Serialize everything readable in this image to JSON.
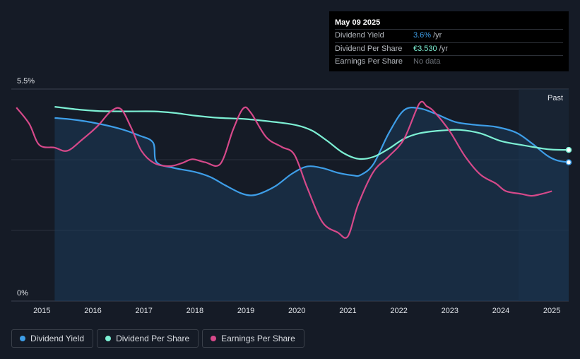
{
  "tooltip": {
    "date": "May 09 2025",
    "rows": [
      {
        "label": "Dividend Yield",
        "value": "3.6%",
        "unit": "/yr",
        "color": "#3e9ee8"
      },
      {
        "label": "Dividend Per Share",
        "value": "€3.530",
        "unit": "/yr",
        "color": "#7df0d4"
      },
      {
        "label": "Earnings Per Share",
        "value": "No data",
        "unit": ""
      }
    ]
  },
  "past_label": "Past",
  "legend": [
    {
      "label": "Dividend Yield",
      "color": "#3e9ee8"
    },
    {
      "label": "Dividend Per Share",
      "color": "#7df0d4"
    },
    {
      "label": "Earnings Per Share",
      "color": "#d6498a"
    }
  ],
  "chart_data": {
    "type": "line",
    "y_tick_labels": [
      "5.5%",
      "0%"
    ],
    "ylim": [
      0,
      5.5
    ],
    "xlim": [
      2014.4,
      2025.33
    ],
    "x_tick_labels": [
      "2015",
      "2016",
      "2017",
      "2018",
      "2019",
      "2020",
      "2021",
      "2022",
      "2023",
      "2024",
      "2025"
    ],
    "x_ticks": [
      2015,
      2016,
      2017,
      2018,
      2019,
      2020,
      2021,
      2022,
      2023,
      2024,
      2025
    ],
    "past_region_start": 2024.35,
    "series": [
      {
        "name": "Dividend Yield",
        "color": "#3e9ee8",
        "fill": true,
        "end_marker": true,
        "points": [
          [
            2015.25,
            4.75
          ],
          [
            2015.6,
            4.71
          ],
          [
            2016.0,
            4.63
          ],
          [
            2016.5,
            4.48
          ],
          [
            2016.9,
            4.3
          ],
          [
            2017.18,
            4.11
          ],
          [
            2017.25,
            3.6
          ],
          [
            2017.6,
            3.45
          ],
          [
            2018.0,
            3.35
          ],
          [
            2018.3,
            3.22
          ],
          [
            2018.6,
            3.0
          ],
          [
            2018.9,
            2.8
          ],
          [
            2019.1,
            2.74
          ],
          [
            2019.3,
            2.8
          ],
          [
            2019.6,
            3.0
          ],
          [
            2019.9,
            3.3
          ],
          [
            2020.2,
            3.49
          ],
          [
            2020.5,
            3.45
          ],
          [
            2020.8,
            3.33
          ],
          [
            2021.1,
            3.26
          ],
          [
            2021.25,
            3.27
          ],
          [
            2021.5,
            3.55
          ],
          [
            2021.8,
            4.35
          ],
          [
            2022.1,
            4.95
          ],
          [
            2022.4,
            5.0
          ],
          [
            2022.7,
            4.87
          ],
          [
            2023.1,
            4.65
          ],
          [
            2023.5,
            4.57
          ],
          [
            2023.9,
            4.52
          ],
          [
            2024.3,
            4.37
          ],
          [
            2024.6,
            4.1
          ],
          [
            2024.9,
            3.78
          ],
          [
            2025.1,
            3.65
          ],
          [
            2025.33,
            3.6
          ]
        ]
      },
      {
        "name": "Dividend Per Share",
        "color": "#7df0d4",
        "fill": false,
        "end_marker": true,
        "points": [
          [
            2015.25,
            5.04
          ],
          [
            2015.7,
            4.97
          ],
          [
            2016.1,
            4.93
          ],
          [
            2016.6,
            4.92
          ],
          [
            2017.2,
            4.92
          ],
          [
            2017.6,
            4.88
          ],
          [
            2018.0,
            4.81
          ],
          [
            2018.5,
            4.75
          ],
          [
            2019.0,
            4.72
          ],
          [
            2019.6,
            4.64
          ],
          [
            2020.0,
            4.56
          ],
          [
            2020.3,
            4.42
          ],
          [
            2020.6,
            4.15
          ],
          [
            2020.9,
            3.85
          ],
          [
            2021.2,
            3.69
          ],
          [
            2021.5,
            3.74
          ],
          [
            2021.8,
            3.95
          ],
          [
            2022.1,
            4.21
          ],
          [
            2022.4,
            4.35
          ],
          [
            2022.8,
            4.42
          ],
          [
            2023.2,
            4.44
          ],
          [
            2023.6,
            4.35
          ],
          [
            2024.0,
            4.15
          ],
          [
            2024.4,
            4.05
          ],
          [
            2024.8,
            3.96
          ],
          [
            2025.0,
            3.93
          ],
          [
            2025.33,
            3.92
          ]
        ]
      },
      {
        "name": "Earnings Per Share",
        "color": "#d6498a",
        "fill": false,
        "end_marker": false,
        "points": [
          [
            2014.5,
            5.02
          ],
          [
            2014.75,
            4.6
          ],
          [
            2014.95,
            4.05
          ],
          [
            2015.25,
            3.98
          ],
          [
            2015.5,
            3.9
          ],
          [
            2015.8,
            4.2
          ],
          [
            2016.1,
            4.55
          ],
          [
            2016.35,
            4.92
          ],
          [
            2016.55,
            4.98
          ],
          [
            2016.75,
            4.5
          ],
          [
            2016.95,
            3.9
          ],
          [
            2017.2,
            3.58
          ],
          [
            2017.5,
            3.5
          ],
          [
            2017.75,
            3.58
          ],
          [
            2017.95,
            3.68
          ],
          [
            2018.2,
            3.6
          ],
          [
            2018.5,
            3.56
          ],
          [
            2018.75,
            4.45
          ],
          [
            2018.95,
            5.0
          ],
          [
            2019.1,
            4.88
          ],
          [
            2019.4,
            4.25
          ],
          [
            2019.7,
            4.0
          ],
          [
            2019.95,
            3.8
          ],
          [
            2020.2,
            2.95
          ],
          [
            2020.5,
            2.05
          ],
          [
            2020.8,
            1.78
          ],
          [
            2021.0,
            1.68
          ],
          [
            2021.2,
            2.5
          ],
          [
            2021.5,
            3.35
          ],
          [
            2021.8,
            3.75
          ],
          [
            2022.1,
            4.2
          ],
          [
            2022.4,
            5.12
          ],
          [
            2022.55,
            5.05
          ],
          [
            2022.7,
            4.9
          ],
          [
            2023.0,
            4.4
          ],
          [
            2023.3,
            3.75
          ],
          [
            2023.6,
            3.28
          ],
          [
            2023.9,
            3.05
          ],
          [
            2024.1,
            2.85
          ],
          [
            2024.4,
            2.78
          ],
          [
            2024.6,
            2.73
          ],
          [
            2024.8,
            2.78
          ],
          [
            2025.0,
            2.85
          ]
        ]
      }
    ]
  }
}
